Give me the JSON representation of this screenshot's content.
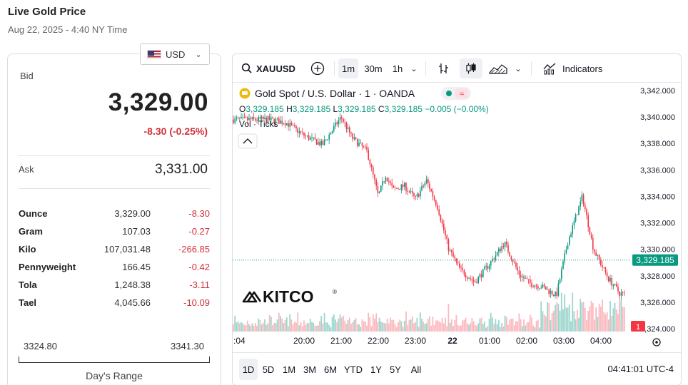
{
  "page": {
    "title": "Live Gold Price",
    "subtitle": "Aug 22, 2025 - 4:40 NY Time"
  },
  "currency": {
    "selected": "USD"
  },
  "quote": {
    "bid_label": "Bid",
    "bid": "3,329.00",
    "change": "-8.30 (-0.25%)",
    "ask_label": "Ask",
    "ask": "3,331.00"
  },
  "units": [
    {
      "name": "Ounce",
      "price": "3,329.00",
      "change": "-8.30"
    },
    {
      "name": "Gram",
      "price": "107.03",
      "change": "-0.27"
    },
    {
      "name": "Kilo",
      "price": "107,031.48",
      "change": "-266.85"
    },
    {
      "name": "Pennyweight",
      "price": "166.45",
      "change": "-0.42"
    },
    {
      "name": "Tola",
      "price": "1,248.38",
      "change": "-3.11"
    },
    {
      "name": "Tael",
      "price": "4,045.66",
      "change": "-10.09"
    }
  ],
  "days_range": {
    "low": "3324.80",
    "high": "3341.30",
    "label": "Day's Range"
  },
  "toolbar": {
    "symbol": "XAUUSD",
    "intervals": [
      "1m",
      "30m",
      "1h"
    ],
    "active_interval": "1m",
    "indicators_label": "Indicators"
  },
  "chart_data": {
    "type": "line",
    "style": "candlestick",
    "title": "Gold Spot / U.S. Dollar · 1 · OANDA",
    "ohlc": {
      "o_label": "O",
      "o": "3,329.185",
      "h_label": "H",
      "h": "3,329.185",
      "l_label": "L",
      "l": "3,329.185",
      "c_label": "C",
      "c": "3,329.185",
      "change": "−0.005 (−0.00%)"
    },
    "volume_label": "Vol · Ticks",
    "yaxis": {
      "ticks": [
        "3,342.000",
        "3,340.000",
        "3,338.000",
        "3,336.000",
        "3,334.000",
        "3,332.000",
        "3,330.000",
        "3,328.000",
        "3,326.000",
        "3,324.000"
      ],
      "ylim": [
        3324,
        3342
      ]
    },
    "xaxis": {
      "ticks": [
        ":04",
        "20:00",
        "21:00",
        "22:00",
        "23:00",
        "22",
        "01:00",
        "02:00",
        "03:00",
        "04:00"
      ]
    },
    "last_price_label": "3,329.185",
    "last_price": 3329.185,
    "grid": false,
    "series": [
      {
        "x": [
          19.05,
          19.5,
          20.0,
          20.5,
          21.0,
          21.3,
          21.7,
          22.0,
          22.2,
          22.4,
          22.7,
          23.0,
          23.3,
          23.6,
          23.9,
          24.2,
          24.6,
          25.0,
          25.4,
          25.8,
          26.1,
          26.4,
          26.8,
          27.1,
          27.5,
          27.8,
          28.2,
          28.5,
          28.8,
          29.0,
          29.2,
          29.6,
          30.0,
          30.3,
          30.6,
          30.8,
          31.0,
          31.3,
          31.5,
          31.7
        ],
        "values": [
          3339.8,
          3339.6,
          3338.6,
          3337.9,
          3340.0,
          3338.4,
          3337.4,
          3334.0,
          3335.6,
          3334.5,
          3334.8,
          3333.8,
          3335.2,
          3333.2,
          3330.0,
          3328.5,
          3327.5,
          3328.9,
          3330.5,
          3328.1,
          3327.4,
          3327.2,
          3326.5,
          3330.5,
          3334.0,
          3330.0,
          3327.8,
          3326.7,
          3326.4,
          3328.0,
          3329.4,
          3328.5,
          3326.8,
          3329.5,
          3329.0,
          3330.3,
          3330.1,
          3329.8,
          3329.4,
          3329.2
        ]
      }
    ],
    "volume_badge": "1"
  },
  "brand": {
    "logo_text": "KITCO",
    "registered": "®"
  },
  "ranges": {
    "items": [
      "1D",
      "5D",
      "1M",
      "3M",
      "6M",
      "YTD",
      "1Y",
      "5Y",
      "All"
    ],
    "active": "1D"
  },
  "clock": "04:41:01 UTC-4",
  "colors": {
    "up": "#089981",
    "down": "#f23645",
    "accent": "#26a69a",
    "text": "#131722"
  }
}
